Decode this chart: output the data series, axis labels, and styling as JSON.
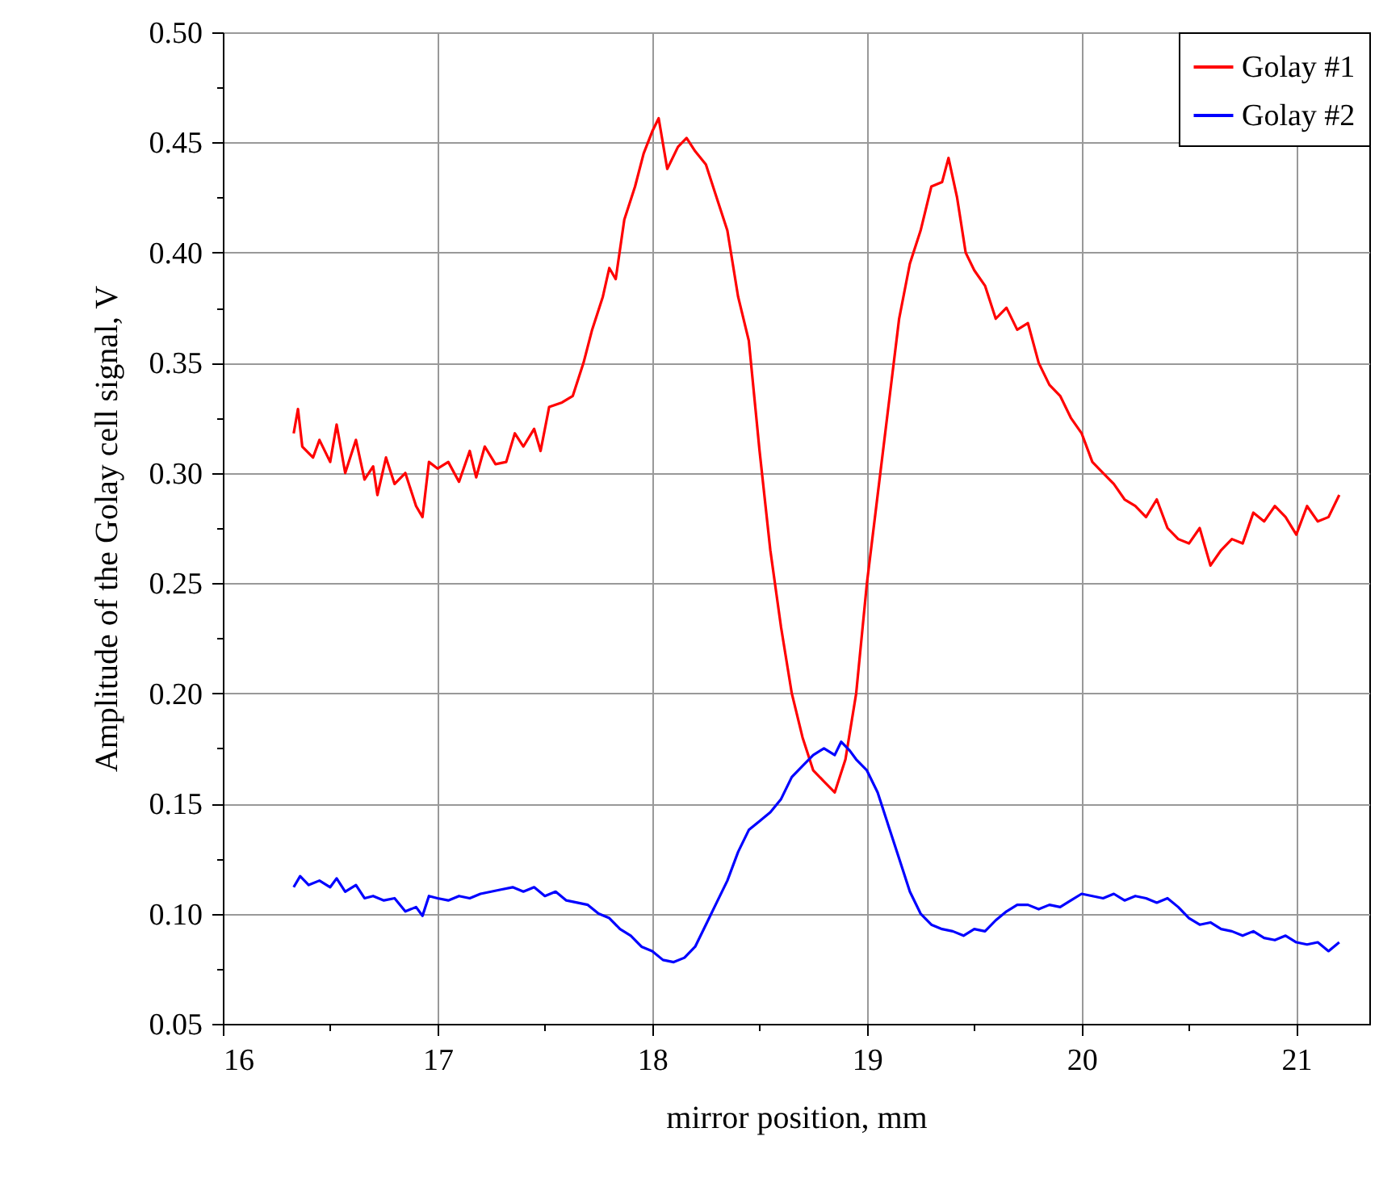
{
  "chart_data": {
    "type": "line",
    "xlabel": "mirror position, mm",
    "ylabel": "Amplitude of the Golay cell signal, V",
    "xlim": [
      16,
      21.34
    ],
    "ylim": [
      0.05,
      0.5
    ],
    "xticks": [
      16,
      {
        "value": 16.5,
        "label": null
      },
      17,
      {
        "value": 17.5,
        "label": null
      },
      18,
      {
        "value": 18.5,
        "label": null
      },
      19,
      {
        "value": 19.5,
        "label": null
      },
      20,
      {
        "value": 20.5,
        "label": null
      },
      21
    ],
    "yticks": [
      0.05,
      {
        "value": 0.075,
        "label": null
      },
      {
        "value": 0.1,
        "label": "0.10"
      },
      {
        "value": 0.125,
        "label": null
      },
      0.15,
      {
        "value": 0.175,
        "label": null
      },
      {
        "value": 0.2,
        "label": "0.20"
      },
      {
        "value": 0.225,
        "label": null
      },
      0.25,
      {
        "value": 0.275,
        "label": null
      },
      {
        "value": 0.3,
        "label": "0.30"
      },
      {
        "value": 0.325,
        "label": null
      },
      0.35,
      {
        "value": 0.375,
        "label": null
      },
      {
        "value": 0.4,
        "label": "0.40"
      },
      {
        "value": 0.425,
        "label": null
      },
      0.45,
      {
        "value": 0.475,
        "label": null
      },
      {
        "value": 0.5,
        "label": "0.50"
      }
    ],
    "grid": true,
    "legend": "top right",
    "line_style": "solid",
    "marker": "none",
    "series": [
      {
        "name": "Golay #1",
        "color": "#ff0000",
        "x": [
          16.33,
          16.35,
          16.37,
          16.42,
          16.45,
          16.5,
          16.53,
          16.57,
          16.62,
          16.66,
          16.7,
          16.72,
          16.76,
          16.8,
          16.85,
          16.9,
          16.93,
          16.96,
          17,
          17.05,
          17.1,
          17.15,
          17.18,
          17.22,
          17.27,
          17.32,
          17.36,
          17.4,
          17.45,
          17.48,
          17.52,
          17.58,
          17.63,
          17.68,
          17.72,
          17.77,
          17.8,
          17.83,
          17.87,
          17.92,
          17.96,
          18,
          18.03,
          18.07,
          18.12,
          18.16,
          18.2,
          18.25,
          18.3,
          18.35,
          18.4,
          18.45,
          18.5,
          18.55,
          18.6,
          18.65,
          18.7,
          18.75,
          18.8,
          18.85,
          18.9,
          18.95,
          19,
          19.05,
          19.1,
          19.15,
          19.2,
          19.25,
          19.3,
          19.35,
          19.38,
          19.42,
          19.46,
          19.5,
          19.55,
          19.6,
          19.65,
          19.7,
          19.75,
          19.8,
          19.85,
          19.9,
          19.95,
          20,
          20.05,
          20.1,
          20.15,
          20.2,
          20.25,
          20.3,
          20.35,
          20.4,
          20.45,
          20.5,
          20.55,
          20.6,
          20.65,
          20.7,
          20.75,
          20.8,
          20.85,
          20.9,
          20.95,
          21,
          21.05,
          21.1,
          21.15,
          21.2
        ],
        "values": [
          0.318,
          0.329,
          0.312,
          0.307,
          0.315,
          0.305,
          0.322,
          0.3,
          0.315,
          0.297,
          0.303,
          0.29,
          0.307,
          0.295,
          0.3,
          0.285,
          0.28,
          0.305,
          0.302,
          0.305,
          0.296,
          0.31,
          0.298,
          0.312,
          0.304,
          0.305,
          0.318,
          0.312,
          0.32,
          0.31,
          0.33,
          0.332,
          0.335,
          0.35,
          0.365,
          0.38,
          0.393,
          0.388,
          0.415,
          0.43,
          0.445,
          0.455,
          0.461,
          0.438,
          0.448,
          0.452,
          0.446,
          0.44,
          0.425,
          0.41,
          0.38,
          0.36,
          0.31,
          0.265,
          0.23,
          0.2,
          0.18,
          0.165,
          0.16,
          0.155,
          0.17,
          0.2,
          0.25,
          0.29,
          0.33,
          0.37,
          0.395,
          0.41,
          0.43,
          0.432,
          0.443,
          0.425,
          0.4,
          0.392,
          0.385,
          0.37,
          0.375,
          0.365,
          0.368,
          0.35,
          0.34,
          0.335,
          0.325,
          0.318,
          0.305,
          0.3,
          0.295,
          0.288,
          0.285,
          0.28,
          0.288,
          0.275,
          0.27,
          0.268,
          0.275,
          0.258,
          0.265,
          0.27,
          0.268,
          0.282,
          0.278,
          0.285,
          0.28,
          0.272,
          0.285,
          0.278,
          0.28,
          0.29
        ]
      },
      {
        "name": "Golay #2",
        "color": "#0000ff",
        "x": [
          16.33,
          16.36,
          16.4,
          16.45,
          16.5,
          16.53,
          16.57,
          16.62,
          16.66,
          16.7,
          16.75,
          16.8,
          16.85,
          16.9,
          16.93,
          16.96,
          17,
          17.05,
          17.1,
          17.15,
          17.2,
          17.25,
          17.3,
          17.35,
          17.4,
          17.45,
          17.5,
          17.55,
          17.6,
          17.65,
          17.7,
          17.75,
          17.8,
          17.85,
          17.9,
          17.95,
          18,
          18.05,
          18.1,
          18.15,
          18.2,
          18.25,
          18.3,
          18.35,
          18.4,
          18.45,
          18.5,
          18.55,
          18.6,
          18.65,
          18.7,
          18.75,
          18.8,
          18.85,
          18.88,
          18.92,
          18.95,
          19,
          19.05,
          19.1,
          19.15,
          19.2,
          19.25,
          19.3,
          19.35,
          19.4,
          19.45,
          19.5,
          19.55,
          19.6,
          19.65,
          19.7,
          19.75,
          19.8,
          19.85,
          19.9,
          19.95,
          20,
          20.05,
          20.1,
          20.15,
          20.2,
          20.25,
          20.3,
          20.35,
          20.4,
          20.45,
          20.5,
          20.55,
          20.6,
          20.65,
          20.7,
          20.75,
          20.8,
          20.85,
          20.9,
          20.95,
          21,
          21.05,
          21.1,
          21.15,
          21.2
        ],
        "values": [
          0.112,
          0.117,
          0.113,
          0.115,
          0.112,
          0.116,
          0.11,
          0.113,
          0.107,
          0.108,
          0.106,
          0.107,
          0.101,
          0.103,
          0.099,
          0.108,
          0.107,
          0.106,
          0.108,
          0.107,
          0.109,
          0.11,
          0.111,
          0.112,
          0.11,
          0.112,
          0.108,
          0.11,
          0.106,
          0.105,
          0.104,
          0.1,
          0.098,
          0.093,
          0.09,
          0.085,
          0.083,
          0.079,
          0.078,
          0.08,
          0.085,
          0.095,
          0.105,
          0.115,
          0.128,
          0.138,
          0.142,
          0.146,
          0.152,
          0.162,
          0.167,
          0.172,
          0.175,
          0.172,
          0.178,
          0.174,
          0.17,
          0.165,
          0.155,
          0.14,
          0.125,
          0.11,
          0.1,
          0.095,
          0.093,
          0.092,
          0.09,
          0.093,
          0.092,
          0.097,
          0.101,
          0.104,
          0.104,
          0.102,
          0.104,
          0.103,
          0.106,
          0.109,
          0.108,
          0.107,
          0.109,
          0.106,
          0.108,
          0.107,
          0.105,
          0.107,
          0.103,
          0.098,
          0.095,
          0.096,
          0.093,
          0.092,
          0.09,
          0.092,
          0.089,
          0.088,
          0.09,
          0.087,
          0.086,
          0.087,
          0.083,
          0.087
        ]
      }
    ]
  }
}
